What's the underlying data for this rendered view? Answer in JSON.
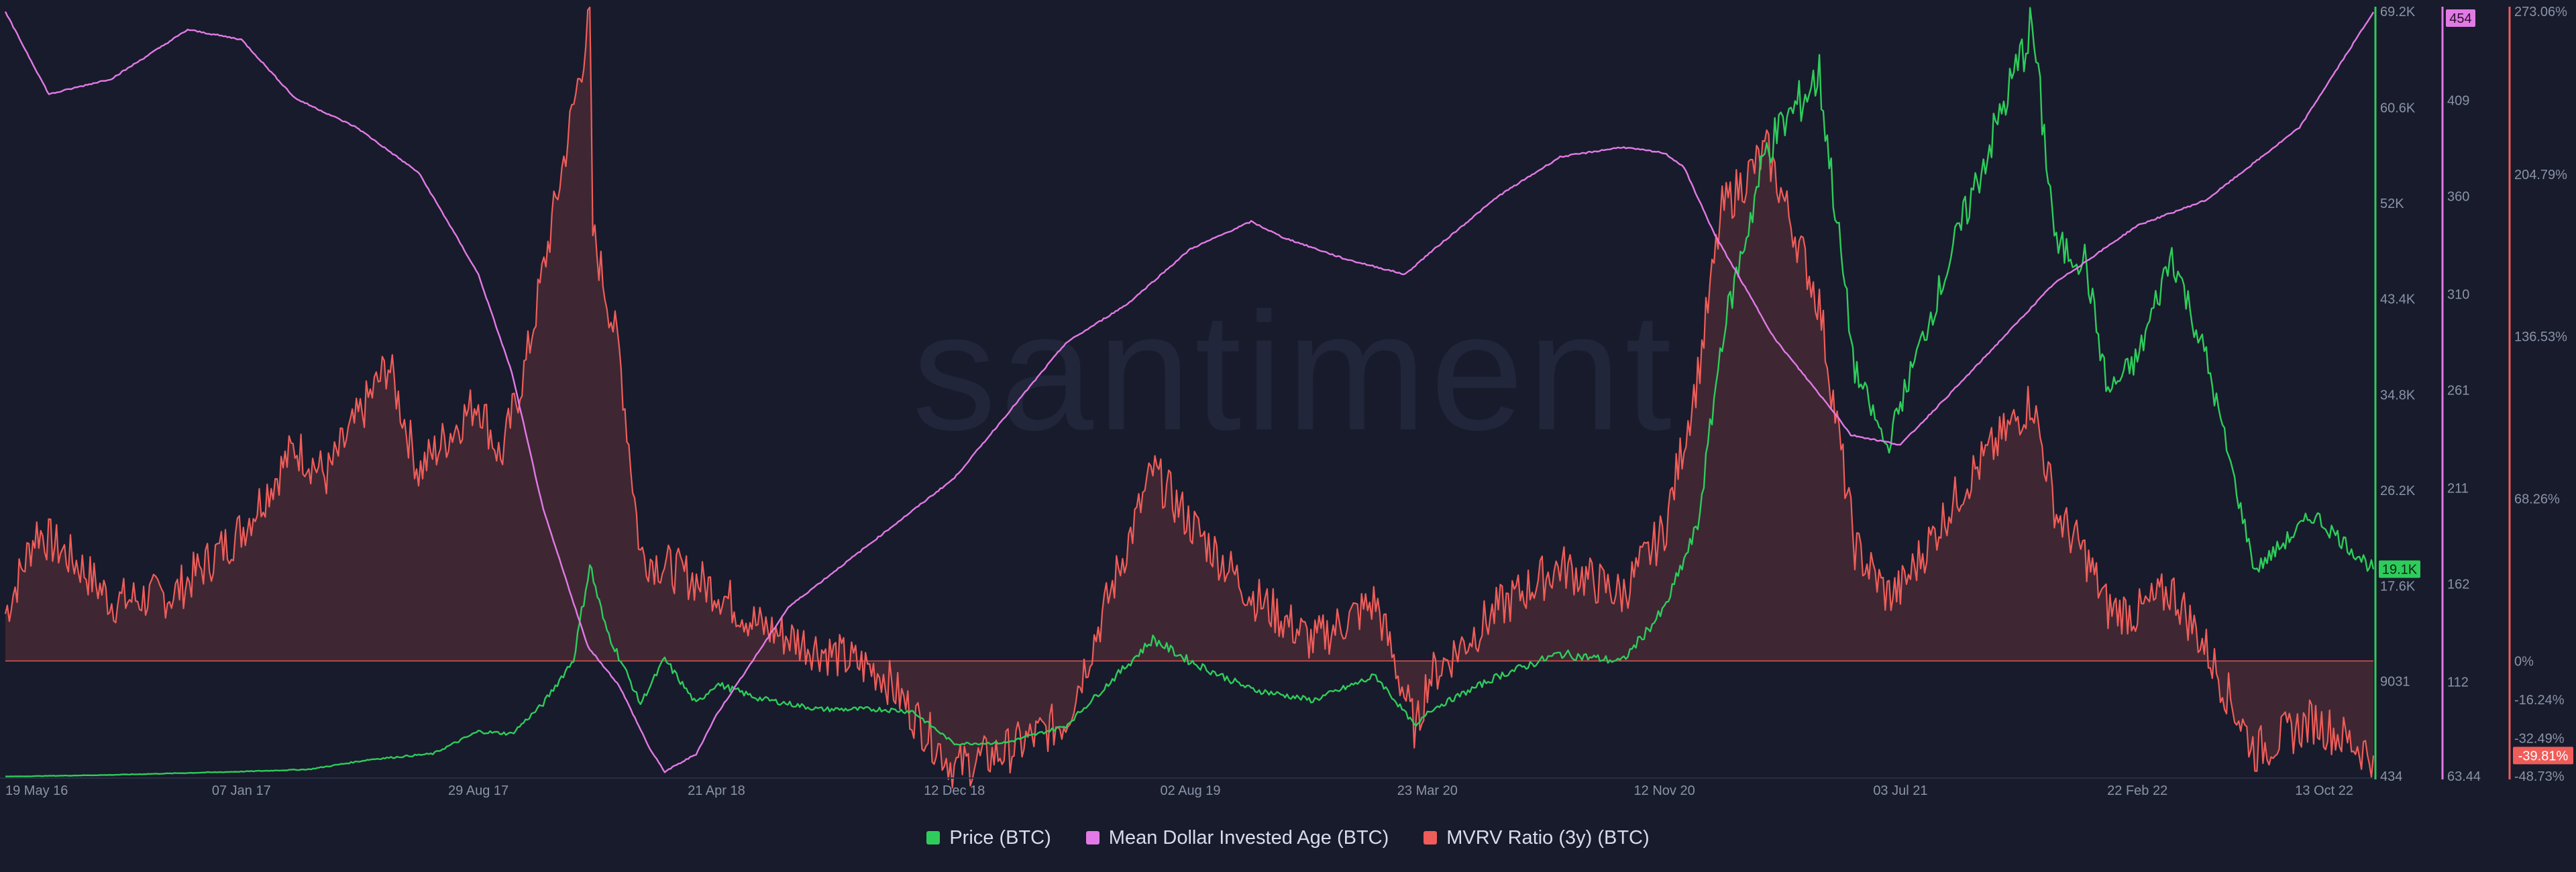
{
  "watermark": "santiment",
  "legend": [
    {
      "label": "Price (BTC)",
      "color": "#2ecc5b"
    },
    {
      "label": "Mean Dollar Invested Age (BTC)",
      "color": "#e27ae6"
    },
    {
      "label": "MVRV Ratio (3y) (BTC)",
      "color": "#ef5d59"
    }
  ],
  "chart_data": {
    "type": "line",
    "x_ticks": [
      "19 May 16",
      "07 Jan 17",
      "29 Aug 17",
      "21 Apr 18",
      "12 Dec 18",
      "02 Aug 19",
      "23 Mar 20",
      "12 Nov 20",
      "03 Jul 21",
      "22 Feb 22",
      "13 Oct 22"
    ],
    "x_range": [
      "19 May 16",
      "13 Oct 22"
    ],
    "axes": {
      "price": {
        "ticks": [
          "69.2K",
          "60.6K",
          "52K",
          "43.4K",
          "34.8K",
          "26.2K",
          "17.6K",
          "9031",
          "434"
        ],
        "range": [
          434,
          69200
        ],
        "current": "19.1K",
        "color": "#2ecc5b"
      },
      "mdia": {
        "ticks": [
          "454",
          "409",
          "360",
          "310",
          "261",
          "211",
          "162",
          "112",
          "63.44"
        ],
        "range": [
          63.44,
          454
        ],
        "current": "454",
        "color": "#e27ae6"
      },
      "mvrv": {
        "ticks": [
          "273.06%",
          "204.79%",
          "136.53%",
          "68.26%",
          "0%",
          "-16.24%",
          "-32.49%",
          "-48.73%"
        ],
        "range": [
          -48.73,
          273.06
        ],
        "current": "-39.81%",
        "color": "#ef5d59"
      }
    },
    "series": [
      {
        "name": "Price (BTC)",
        "points": [
          [
            "19 May 16",
            450
          ],
          [
            "01 Sep 16",
            600
          ],
          [
            "07 Jan 17",
            900
          ],
          [
            "15 Mar 17",
            1100
          ],
          [
            "15 May 17",
            2000
          ],
          [
            "15 Jul 17",
            2500
          ],
          [
            "29 Aug 17",
            4500
          ],
          [
            "01 Oct 17",
            4300
          ],
          [
            "01 Nov 17",
            7000
          ],
          [
            "01 Dec 17",
            11000
          ],
          [
            "17 Dec 17",
            19500
          ],
          [
            "01 Jan 18",
            14000
          ],
          [
            "05 Feb 18",
            7000
          ],
          [
            "01 Mar 18",
            11000
          ],
          [
            "01 Apr 18",
            7000
          ],
          [
            "21 Apr 18",
            8800
          ],
          [
            "01 Jun 18",
            7500
          ],
          [
            "01 Aug 18",
            6500
          ],
          [
            "01 Oct 18",
            6500
          ],
          [
            "01 Nov 18",
            6300
          ],
          [
            "12 Dec 18",
            3400
          ],
          [
            "01 Feb 19",
            3500
          ],
          [
            "01 Apr 19",
            5000
          ],
          [
            "26 Jun 19",
            12800
          ],
          [
            "02 Aug 19",
            10800
          ],
          [
            "01 Oct 19",
            8300
          ],
          [
            "01 Dec 19",
            7300
          ],
          [
            "01 Feb 20",
            9500
          ],
          [
            "12 Mar 20",
            4900
          ],
          [
            "23 Mar 20",
            6300
          ],
          [
            "01 Jun 20",
            9500
          ],
          [
            "01 Aug 20",
            11500
          ],
          [
            "01 Oct 20",
            10800
          ],
          [
            "12 Nov 20",
            15500
          ],
          [
            "15 Dec 20",
            23000
          ],
          [
            "08 Jan 21",
            40000
          ],
          [
            "21 Feb 21",
            57000
          ],
          [
            "14 Apr 21",
            63500
          ],
          [
            "19 May 21",
            37000
          ],
          [
            "20 Jun 21",
            30000
          ],
          [
            "03 Jul 21",
            34000
          ],
          [
            "05 Sep 21",
            51000
          ],
          [
            "10 Nov 21",
            68000
          ],
          [
            "04 Dec 21",
            48000
          ],
          [
            "01 Jan 22",
            47000
          ],
          [
            "24 Jan 22",
            35000
          ],
          [
            "22 Feb 22",
            38000
          ],
          [
            "28 Mar 22",
            47500
          ],
          [
            "01 May 22",
            38000
          ],
          [
            "18 Jun 22",
            19000
          ],
          [
            "15 Aug 22",
            24000
          ],
          [
            "13 Oct 22",
            19100
          ]
        ]
      },
      {
        "name": "Mean Dollar Invested Age (BTC)",
        "points": [
          [
            "19 May 16",
            454
          ],
          [
            "01 Jul 16",
            412
          ],
          [
            "01 Sep 16",
            420
          ],
          [
            "15 Nov 16",
            445
          ],
          [
            "07 Jan 17",
            440
          ],
          [
            "01 Mar 17",
            410
          ],
          [
            "01 May 17",
            395
          ],
          [
            "01 Jul 17",
            372
          ],
          [
            "01 Aug 17",
            345
          ],
          [
            "29 Aug 17",
            320
          ],
          [
            "01 Oct 17",
            270
          ],
          [
            "01 Nov 17",
            200
          ],
          [
            "15 Dec 17",
            130
          ],
          [
            "15 Jan 18",
            110
          ],
          [
            "15 Feb 18",
            77
          ],
          [
            "01 Mar 18",
            66
          ],
          [
            "01 Apr 18",
            75
          ],
          [
            "21 Apr 18",
            95
          ],
          [
            "01 Jul 18",
            150
          ],
          [
            "12 Dec 18",
            216
          ],
          [
            "01 Apr 19",
            285
          ],
          [
            "01 Jun 19",
            305
          ],
          [
            "02 Aug 19",
            333
          ],
          [
            "01 Oct 19",
            347
          ],
          [
            "01 Nov 19",
            339
          ],
          [
            "01 Jan 20",
            328
          ],
          [
            "01 Mar 20",
            320
          ],
          [
            "23 Mar 20",
            330
          ],
          [
            "01 Jun 20",
            360
          ],
          [
            "01 Aug 20",
            380
          ],
          [
            "01 Oct 20",
            385
          ],
          [
            "12 Nov 20",
            382
          ],
          [
            "01 Dec 20",
            375
          ],
          [
            "01 Jan 21",
            340
          ],
          [
            "01 Mar 21",
            287
          ],
          [
            "01 May 21",
            248
          ],
          [
            "15 May 21",
            238
          ],
          [
            "03 Jul 21",
            233
          ],
          [
            "01 Sep 21",
            265
          ],
          [
            "01 Dec 21",
            315
          ],
          [
            "22 Feb 22",
            345
          ],
          [
            "01 May 22",
            358
          ],
          [
            "01 Aug 22",
            395
          ],
          [
            "13 Oct 22",
            454
          ]
        ]
      },
      {
        "name": "MVRV Ratio (3y) (BTC)",
        "points": [
          [
            "19 May 16",
            20
          ],
          [
            "19 Jun 16",
            55
          ],
          [
            "01 Aug 16",
            40
          ],
          [
            "01 Sep 16",
            25
          ],
          [
            "01 Nov 16",
            28
          ],
          [
            "07 Jan 17",
            55
          ],
          [
            "01 Mar 17",
            90
          ],
          [
            "01 Apr 17",
            78
          ],
          [
            "01 Jun 17",
            125
          ],
          [
            "01 Jul 17",
            80
          ],
          [
            "29 Aug 17",
            110
          ],
          [
            "20 Sep 17",
            85
          ],
          [
            "15 Oct 17",
            125
          ],
          [
            "17 Dec 17",
            270
          ],
          [
            "20 Dec 17",
            180
          ],
          [
            "15 Jan 18",
            130
          ],
          [
            "05 Feb 18",
            45
          ],
          [
            "21 Apr 18",
            30
          ],
          [
            "01 Jun 18",
            15
          ],
          [
            "01 Aug 18",
            5
          ],
          [
            "01 Oct 18",
            -5
          ],
          [
            "12 Dec 18",
            -45
          ],
          [
            "01 Feb 19",
            -38
          ],
          [
            "01 Apr 19",
            -25
          ],
          [
            "26 Jun 19",
            80
          ],
          [
            "02 Aug 19",
            58
          ],
          [
            "01 Oct 19",
            28
          ],
          [
            "01 Dec 19",
            8
          ],
          [
            "01 Feb 20",
            25
          ],
          [
            "12 Mar 20",
            -30
          ],
          [
            "23 Mar 20",
            -8
          ],
          [
            "01 Jun 20",
            22
          ],
          [
            "01 Aug 20",
            40
          ],
          [
            "01 Oct 20",
            28
          ],
          [
            "12 Nov 20",
            55
          ],
          [
            "15 Dec 20",
            120
          ],
          [
            "08 Jan 21",
            190
          ],
          [
            "21 Feb 21",
            215
          ],
          [
            "14 Apr 21",
            150
          ],
          [
            "19 May 21",
            48
          ],
          [
            "20 Jun 21",
            28
          ],
          [
            "03 Jul 21",
            30
          ],
          [
            "05 Sep 21",
            75
          ],
          [
            "10 Nov 21",
            110
          ],
          [
            "04 Dec 21",
            62
          ],
          [
            "01 Jan 22",
            45
          ],
          [
            "24 Jan 22",
            22
          ],
          [
            "22 Feb 22",
            20
          ],
          [
            "28 Mar 22",
            30
          ],
          [
            "01 May 22",
            5
          ],
          [
            "18 Jun 22",
            -38
          ],
          [
            "15 Aug 22",
            -25
          ],
          [
            "13 Oct 22",
            -39.81
          ]
        ]
      }
    ]
  }
}
